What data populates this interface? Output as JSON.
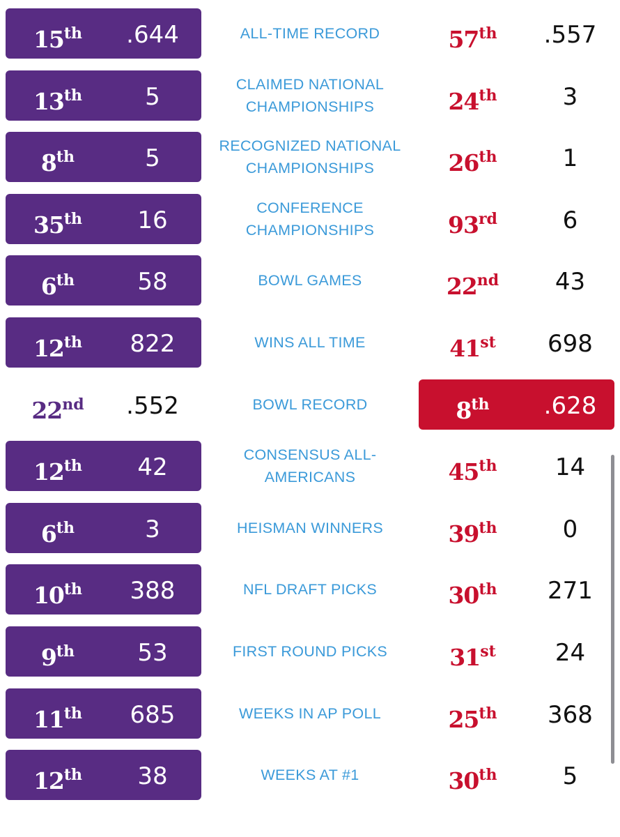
{
  "colors": {
    "left_accent": "#582c83",
    "right_accent": "#c8102e",
    "label": "#3b9ad9"
  },
  "rows": [
    {
      "label": "ALL-TIME RECORD",
      "left": {
        "rank": "15",
        "suffix": "th",
        "value": ".644",
        "highlight": true
      },
      "right": {
        "rank": "57",
        "suffix": "th",
        "value": ".557",
        "highlight": false
      }
    },
    {
      "label": "CLAIMED NATIONAL CHAMPIONSHIPS",
      "left": {
        "rank": "13",
        "suffix": "th",
        "value": "5",
        "highlight": true
      },
      "right": {
        "rank": "24",
        "suffix": "th",
        "value": "3",
        "highlight": false
      }
    },
    {
      "label": "RECOGNIZED NATIONAL CHAMPIONSHIPS",
      "left": {
        "rank": "8",
        "suffix": "th",
        "value": "5",
        "highlight": true
      },
      "right": {
        "rank": "26",
        "suffix": "th",
        "value": "1",
        "highlight": false
      }
    },
    {
      "label": "CONFERENCE CHAMPIONSHIPS",
      "left": {
        "rank": "35",
        "suffix": "th",
        "value": "16",
        "highlight": true
      },
      "right": {
        "rank": "93",
        "suffix": "rd",
        "value": "6",
        "highlight": false
      }
    },
    {
      "label": "BOWL GAMES",
      "left": {
        "rank": "6",
        "suffix": "th",
        "value": "58",
        "highlight": true
      },
      "right": {
        "rank": "22",
        "suffix": "nd",
        "value": "43",
        "highlight": false
      }
    },
    {
      "label": "WINS ALL TIME",
      "left": {
        "rank": "12",
        "suffix": "th",
        "value": "822",
        "highlight": true
      },
      "right": {
        "rank": "41",
        "suffix": "st",
        "value": "698",
        "highlight": false
      }
    },
    {
      "label": "BOWL RECORD",
      "left": {
        "rank": "22",
        "suffix": "nd",
        "value": ".552",
        "highlight": false
      },
      "right": {
        "rank": "8",
        "suffix": "th",
        "value": ".628",
        "highlight": true
      }
    },
    {
      "label": "CONSENSUS ALL-AMERICANS",
      "left": {
        "rank": "12",
        "suffix": "th",
        "value": "42",
        "highlight": true
      },
      "right": {
        "rank": "45",
        "suffix": "th",
        "value": "14",
        "highlight": false
      }
    },
    {
      "label": "HEISMAN WINNERS",
      "left": {
        "rank": "6",
        "suffix": "th",
        "value": "3",
        "highlight": true
      },
      "right": {
        "rank": "39",
        "suffix": "th",
        "value": "0",
        "highlight": false
      }
    },
    {
      "label": "NFL DRAFT PICKS",
      "left": {
        "rank": "10",
        "suffix": "th",
        "value": "388",
        "highlight": true
      },
      "right": {
        "rank": "30",
        "suffix": "th",
        "value": "271",
        "highlight": false
      }
    },
    {
      "label": "FIRST ROUND PICKS",
      "left": {
        "rank": "9",
        "suffix": "th",
        "value": "53",
        "highlight": true
      },
      "right": {
        "rank": "31",
        "suffix": "st",
        "value": "24",
        "highlight": false
      }
    },
    {
      "label": "WEEKS IN AP POLL",
      "left": {
        "rank": "11",
        "suffix": "th",
        "value": "685",
        "highlight": true
      },
      "right": {
        "rank": "25",
        "suffix": "th",
        "value": "368",
        "highlight": false
      }
    },
    {
      "label": "WEEKS AT #1",
      "left": {
        "rank": "12",
        "suffix": "th",
        "value": "38",
        "highlight": true
      },
      "right": {
        "rank": "30",
        "suffix": "th",
        "value": "5",
        "highlight": false
      }
    }
  ]
}
